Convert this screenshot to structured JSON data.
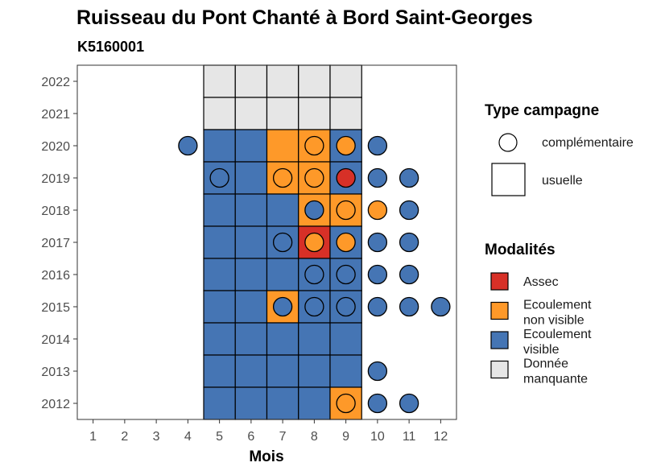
{
  "chart_data": {
    "type": "heatmap",
    "title": "Ruisseau du Pont Chanté à Bord Saint-Georges",
    "subtitle": "K5160001",
    "xlabel": "Mois",
    "ylabel": "",
    "x_ticks": [
      "1",
      "2",
      "3",
      "4",
      "5",
      "6",
      "7",
      "8",
      "9",
      "10",
      "11",
      "12"
    ],
    "y_ticks": [
      "2012",
      "2013",
      "2014",
      "2015",
      "2016",
      "2017",
      "2018",
      "2019",
      "2020",
      "2021",
      "2022"
    ],
    "xlim": [
      0.5,
      12.5
    ],
    "ylim": [
      2011.5,
      2022.5
    ],
    "colors": {
      "Assec": "#d73027",
      "Ecoulement non visible": "#fe9929",
      "Ecoulement visible": "#4575b4",
      "Donnée manquante": "#e6e6e6"
    },
    "usuelle": [
      {
        "year": 2022,
        "month": 5,
        "modalite": "Donnée manquante"
      },
      {
        "year": 2022,
        "month": 6,
        "modalite": "Donnée manquante"
      },
      {
        "year": 2022,
        "month": 7,
        "modalite": "Donnée manquante"
      },
      {
        "year": 2022,
        "month": 8,
        "modalite": "Donnée manquante"
      },
      {
        "year": 2022,
        "month": 9,
        "modalite": "Donnée manquante"
      },
      {
        "year": 2021,
        "month": 5,
        "modalite": "Donnée manquante"
      },
      {
        "year": 2021,
        "month": 6,
        "modalite": "Donnée manquante"
      },
      {
        "year": 2021,
        "month": 7,
        "modalite": "Donnée manquante"
      },
      {
        "year": 2021,
        "month": 8,
        "modalite": "Donnée manquante"
      },
      {
        "year": 2021,
        "month": 9,
        "modalite": "Donnée manquante"
      },
      {
        "year": 2020,
        "month": 5,
        "modalite": "Ecoulement visible"
      },
      {
        "year": 2020,
        "month": 6,
        "modalite": "Ecoulement visible"
      },
      {
        "year": 2020,
        "month": 7,
        "modalite": "Ecoulement non visible"
      },
      {
        "year": 2020,
        "month": 8,
        "modalite": "Ecoulement non visible"
      },
      {
        "year": 2020,
        "month": 9,
        "modalite": "Ecoulement visible"
      },
      {
        "year": 2019,
        "month": 5,
        "modalite": "Ecoulement visible"
      },
      {
        "year": 2019,
        "month": 6,
        "modalite": "Ecoulement visible"
      },
      {
        "year": 2019,
        "month": 7,
        "modalite": "Ecoulement non visible"
      },
      {
        "year": 2019,
        "month": 8,
        "modalite": "Ecoulement non visible"
      },
      {
        "year": 2019,
        "month": 9,
        "modalite": "Ecoulement visible"
      },
      {
        "year": 2018,
        "month": 5,
        "modalite": "Ecoulement visible"
      },
      {
        "year": 2018,
        "month": 6,
        "modalite": "Ecoulement visible"
      },
      {
        "year": 2018,
        "month": 7,
        "modalite": "Ecoulement visible"
      },
      {
        "year": 2018,
        "month": 8,
        "modalite": "Ecoulement non visible"
      },
      {
        "year": 2018,
        "month": 9,
        "modalite": "Ecoulement non visible"
      },
      {
        "year": 2017,
        "month": 5,
        "modalite": "Ecoulement visible"
      },
      {
        "year": 2017,
        "month": 6,
        "modalite": "Ecoulement visible"
      },
      {
        "year": 2017,
        "month": 7,
        "modalite": "Ecoulement visible"
      },
      {
        "year": 2017,
        "month": 8,
        "modalite": "Assec"
      },
      {
        "year": 2017,
        "month": 9,
        "modalite": "Ecoulement visible"
      },
      {
        "year": 2016,
        "month": 5,
        "modalite": "Ecoulement visible"
      },
      {
        "year": 2016,
        "month": 6,
        "modalite": "Ecoulement visible"
      },
      {
        "year": 2016,
        "month": 7,
        "modalite": "Ecoulement visible"
      },
      {
        "year": 2016,
        "month": 8,
        "modalite": "Ecoulement visible"
      },
      {
        "year": 2016,
        "month": 9,
        "modalite": "Ecoulement visible"
      },
      {
        "year": 2015,
        "month": 5,
        "modalite": "Ecoulement visible"
      },
      {
        "year": 2015,
        "month": 6,
        "modalite": "Ecoulement visible"
      },
      {
        "year": 2015,
        "month": 7,
        "modalite": "Ecoulement non visible"
      },
      {
        "year": 2015,
        "month": 8,
        "modalite": "Ecoulement visible"
      },
      {
        "year": 2015,
        "month": 9,
        "modalite": "Ecoulement visible"
      },
      {
        "year": 2014,
        "month": 5,
        "modalite": "Ecoulement visible"
      },
      {
        "year": 2014,
        "month": 6,
        "modalite": "Ecoulement visible"
      },
      {
        "year": 2014,
        "month": 7,
        "modalite": "Ecoulement visible"
      },
      {
        "year": 2014,
        "month": 8,
        "modalite": "Ecoulement visible"
      },
      {
        "year": 2014,
        "month": 9,
        "modalite": "Ecoulement visible"
      },
      {
        "year": 2013,
        "month": 5,
        "modalite": "Ecoulement visible"
      },
      {
        "year": 2013,
        "month": 6,
        "modalite": "Ecoulement visible"
      },
      {
        "year": 2013,
        "month": 7,
        "modalite": "Ecoulement visible"
      },
      {
        "year": 2013,
        "month": 8,
        "modalite": "Ecoulement visible"
      },
      {
        "year": 2013,
        "month": 9,
        "modalite": "Ecoulement visible"
      },
      {
        "year": 2012,
        "month": 5,
        "modalite": "Ecoulement visible"
      },
      {
        "year": 2012,
        "month": 6,
        "modalite": "Ecoulement visible"
      },
      {
        "year": 2012,
        "month": 7,
        "modalite": "Ecoulement visible"
      },
      {
        "year": 2012,
        "month": 8,
        "modalite": "Ecoulement visible"
      },
      {
        "year": 2012,
        "month": 9,
        "modalite": "Ecoulement non visible"
      }
    ],
    "complementaire": [
      {
        "year": 2020,
        "month": 4,
        "modalite": "Ecoulement visible"
      },
      {
        "year": 2020,
        "month": 8,
        "modalite": "Ecoulement non visible"
      },
      {
        "year": 2020,
        "month": 9,
        "modalite": "Ecoulement non visible"
      },
      {
        "year": 2020,
        "month": 10,
        "modalite": "Ecoulement visible"
      },
      {
        "year": 2019,
        "month": 5,
        "modalite": "Ecoulement visible"
      },
      {
        "year": 2019,
        "month": 7,
        "modalite": "Ecoulement non visible"
      },
      {
        "year": 2019,
        "month": 8,
        "modalite": "Ecoulement non visible"
      },
      {
        "year": 2019,
        "month": 9,
        "modalite": "Assec"
      },
      {
        "year": 2019,
        "month": 10,
        "modalite": "Ecoulement visible"
      },
      {
        "year": 2019,
        "month": 11,
        "modalite": "Ecoulement visible"
      },
      {
        "year": 2018,
        "month": 8,
        "modalite": "Ecoulement visible"
      },
      {
        "year": 2018,
        "month": 9,
        "modalite": "Ecoulement non visible"
      },
      {
        "year": 2018,
        "month": 10,
        "modalite": "Ecoulement non visible"
      },
      {
        "year": 2018,
        "month": 11,
        "modalite": "Ecoulement visible"
      },
      {
        "year": 2017,
        "month": 7,
        "modalite": "Ecoulement visible"
      },
      {
        "year": 2017,
        "month": 8,
        "modalite": "Ecoulement non visible"
      },
      {
        "year": 2017,
        "month": 9,
        "modalite": "Ecoulement non visible"
      },
      {
        "year": 2017,
        "month": 10,
        "modalite": "Ecoulement visible"
      },
      {
        "year": 2017,
        "month": 11,
        "modalite": "Ecoulement visible"
      },
      {
        "year": 2016,
        "month": 8,
        "modalite": "Ecoulement visible"
      },
      {
        "year": 2016,
        "month": 9,
        "modalite": "Ecoulement visible"
      },
      {
        "year": 2016,
        "month": 10,
        "modalite": "Ecoulement visible"
      },
      {
        "year": 2016,
        "month": 11,
        "modalite": "Ecoulement visible"
      },
      {
        "year": 2015,
        "month": 7,
        "modalite": "Ecoulement visible"
      },
      {
        "year": 2015,
        "month": 8,
        "modalite": "Ecoulement visible"
      },
      {
        "year": 2015,
        "month": 9,
        "modalite": "Ecoulement visible"
      },
      {
        "year": 2015,
        "month": 10,
        "modalite": "Ecoulement visible"
      },
      {
        "year": 2015,
        "month": 11,
        "modalite": "Ecoulement visible"
      },
      {
        "year": 2015,
        "month": 12,
        "modalite": "Ecoulement visible"
      },
      {
        "year": 2013,
        "month": 10,
        "modalite": "Ecoulement visible"
      },
      {
        "year": 2012,
        "month": 9,
        "modalite": "Ecoulement non visible"
      },
      {
        "year": 2012,
        "month": 10,
        "modalite": "Ecoulement visible"
      },
      {
        "year": 2012,
        "month": 11,
        "modalite": "Ecoulement visible"
      }
    ]
  },
  "legend_type": {
    "title": "Type campagne",
    "items": [
      "complémentaire",
      "usuelle"
    ]
  },
  "legend_modalites": {
    "title": "Modalités",
    "items": [
      {
        "label_lines": [
          "Assec"
        ],
        "color": "#d73027"
      },
      {
        "label_lines": [
          "Ecoulement",
          "non visible"
        ],
        "color": "#fe9929"
      },
      {
        "label_lines": [
          "Ecoulement",
          "visible"
        ],
        "color": "#4575b4"
      },
      {
        "label_lines": [
          "Donnée",
          "manquante"
        ],
        "color": "#e6e6e6"
      }
    ]
  }
}
